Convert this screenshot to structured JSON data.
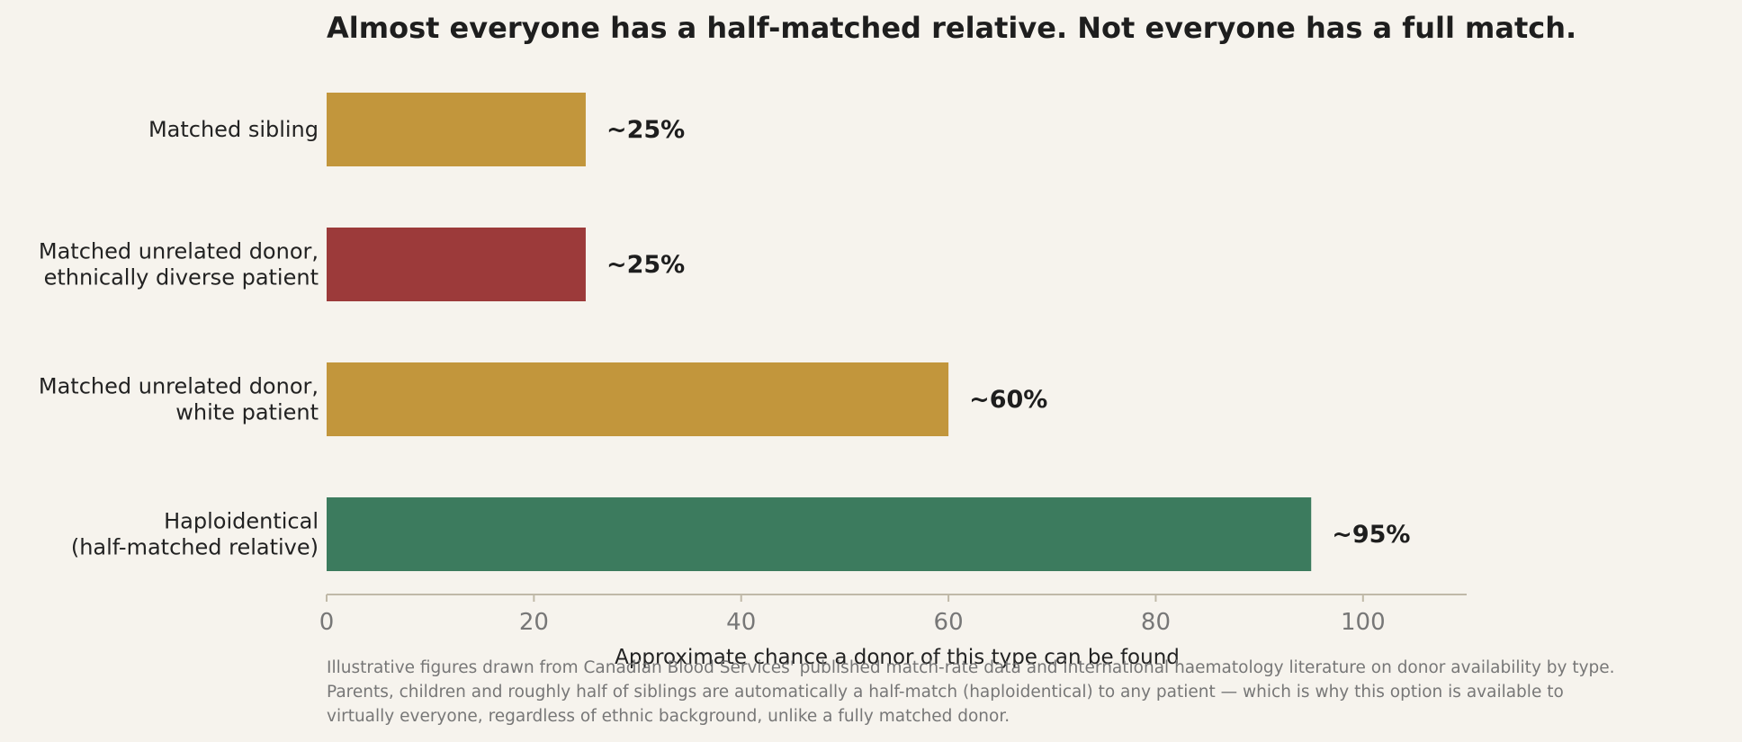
{
  "chart_data": {
    "type": "bar",
    "orientation": "horizontal",
    "title": "Almost everyone has a half-matched relative. Not everyone has a full match.",
    "xlabel": "Approximate chance a donor of this type can be found",
    "ylabel": "",
    "xlim": [
      0,
      110
    ],
    "xticks": [
      0,
      20,
      40,
      60,
      80,
      100
    ],
    "grid": false,
    "categories": [
      [
        "Matched sibling"
      ],
      [
        "Matched unrelated donor,",
        "ethnically diverse patient"
      ],
      [
        "Matched unrelated donor,",
        "white patient"
      ],
      [
        "Haploidentical",
        "(half-matched relative)"
      ]
    ],
    "values": [
      25,
      25,
      60,
      95
    ],
    "value_labels": [
      "~25%",
      "~25%",
      "~60%",
      "~95%"
    ],
    "colors": [
      "#c2963c",
      "#9c3a3a",
      "#c2963c",
      "#3c7b5e"
    ]
  },
  "footnote": [
    "Illustrative figures drawn from Canadian Blood Services' published match-rate data and international haematology literature on donor availability by type.",
    "Parents, children and roughly half of siblings are automatically a half-match (haploidentical) to any patient — which is why this option is available to",
    "virtually everyone, regardless of ethnic background, unlike a fully matched donor."
  ],
  "colors": {
    "background": "#f6f3ed",
    "axis": "#c0b9a8",
    "tick_text": "#777777"
  }
}
